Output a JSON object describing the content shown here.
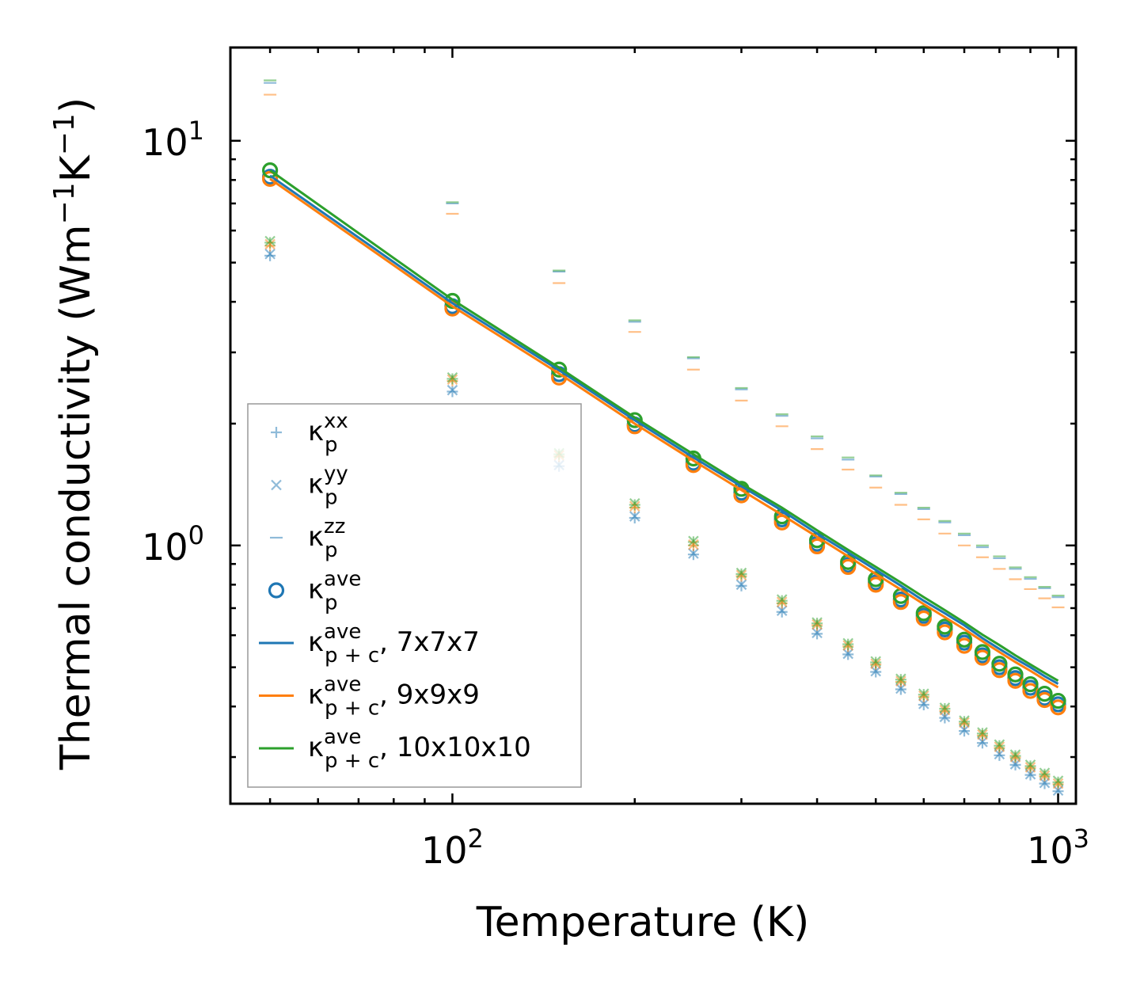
{
  "chart_data": {
    "type": "scatter",
    "title": "",
    "xlabel": "Temperature (K)",
    "ylabel_parts": [
      "Thermal conductivity (Wm",
      "−1",
      "K",
      "−1",
      ")"
    ],
    "xscale": "log",
    "yscale": "log",
    "xlim": [
      43,
      1070
    ],
    "ylim": [
      0.23,
      17
    ],
    "x_major_ticks": [
      {
        "value": 100,
        "base": "10",
        "exp": "2"
      },
      {
        "value": 1000,
        "base": "10",
        "exp": "3"
      }
    ],
    "y_major_ticks": [
      {
        "value": 1,
        "base": "10",
        "exp": "0"
      },
      {
        "value": 10,
        "base": "10",
        "exp": "1"
      }
    ],
    "legend_position": "lower-left",
    "colors": {
      "blue": "#1f77b4",
      "orange": "#ff7f0e",
      "green": "#2ca02c"
    },
    "x": [
      50,
      100,
      150,
      200,
      250,
      300,
      350,
      400,
      450,
      500,
      550,
      600,
      650,
      700,
      750,
      800,
      850,
      900,
      950,
      1000
    ],
    "marker_series": [
      {
        "name": "kappa_p_xx",
        "marker": "+",
        "values": {
          "blue": [
            5.2,
            2.4,
            1.57,
            1.17,
            0.95,
            0.795,
            0.685,
            0.605,
            0.538,
            0.487,
            0.441,
            0.404,
            0.375,
            0.348,
            0.325,
            0.303,
            0.287,
            0.271,
            0.258,
            0.247
          ],
          "orange": [
            5.5,
            2.55,
            1.66,
            1.24,
            1.0,
            0.84,
            0.72,
            0.635,
            0.563,
            0.508,
            0.46,
            0.423,
            0.39,
            0.363,
            0.339,
            0.316,
            0.299,
            0.282,
            0.269,
            0.257
          ],
          "green": [
            5.6,
            2.58,
            1.68,
            1.26,
            1.02,
            0.85,
            0.73,
            0.642,
            0.57,
            0.514,
            0.466,
            0.428,
            0.395,
            0.367,
            0.343,
            0.32,
            0.302,
            0.285,
            0.272,
            0.26
          ]
        }
      },
      {
        "name": "kappa_p_yy",
        "marker": "x",
        "values": {
          "blue": [
            5.25,
            2.42,
            1.58,
            1.18,
            0.955,
            0.8,
            0.69,
            0.608,
            0.54,
            0.489,
            0.443,
            0.406,
            0.377,
            0.35,
            0.327,
            0.305,
            0.288,
            0.272,
            0.259,
            0.248
          ],
          "orange": [
            5.55,
            2.57,
            1.67,
            1.25,
            1.005,
            0.845,
            0.725,
            0.638,
            0.566,
            0.51,
            0.462,
            0.425,
            0.392,
            0.365,
            0.341,
            0.318,
            0.3,
            0.283,
            0.27,
            0.258
          ],
          "green": [
            5.65,
            2.6,
            1.69,
            1.27,
            1.025,
            0.855,
            0.735,
            0.645,
            0.573,
            0.517,
            0.468,
            0.43,
            0.397,
            0.369,
            0.345,
            0.322,
            0.304,
            0.287,
            0.274,
            0.262
          ]
        }
      },
      {
        "name": "kappa_p_zz",
        "marker": "_",
        "values": {
          "blue": [
            13.9,
            7.0,
            4.75,
            3.57,
            2.9,
            2.43,
            2.09,
            1.84,
            1.63,
            1.48,
            1.34,
            1.23,
            1.14,
            1.06,
            0.99,
            0.93,
            0.875,
            0.827,
            0.784,
            0.745
          ],
          "orange": [
            13.0,
            6.6,
            4.45,
            3.37,
            2.72,
            2.28,
            1.97,
            1.73,
            1.54,
            1.39,
            1.26,
            1.16,
            1.07,
            1.0,
            0.935,
            0.875,
            0.825,
            0.78,
            0.74,
            0.703
          ],
          "green": [
            14.1,
            7.05,
            4.78,
            3.6,
            2.92,
            2.45,
            2.11,
            1.86,
            1.65,
            1.49,
            1.35,
            1.24,
            1.15,
            1.07,
            1.0,
            0.94,
            0.883,
            0.835,
            0.79,
            0.752
          ]
        }
      },
      {
        "name": "kappa_p_ave",
        "marker": "o",
        "values": {
          "blue": [
            8.15,
            3.9,
            2.65,
            1.99,
            1.6,
            1.35,
            1.16,
            1.01,
            0.895,
            0.81,
            0.735,
            0.67,
            0.62,
            0.575,
            0.535,
            0.5,
            0.47,
            0.445,
            0.42,
            0.405
          ],
          "orange": [
            8.05,
            3.85,
            2.6,
            1.97,
            1.58,
            1.33,
            1.14,
            0.995,
            0.885,
            0.8,
            0.725,
            0.66,
            0.61,
            0.565,
            0.528,
            0.492,
            0.463,
            0.437,
            0.415,
            0.398
          ],
          "green": [
            8.45,
            4.02,
            2.72,
            2.04,
            1.64,
            1.38,
            1.18,
            1.03,
            0.91,
            0.825,
            0.75,
            0.68,
            0.63,
            0.585,
            0.545,
            0.51,
            0.48,
            0.454,
            0.43,
            0.413
          ]
        }
      }
    ],
    "line_series": [
      {
        "name": "kappa_pc_ave_7x7x7",
        "color": "blue",
        "values": [
          8.2,
          3.97,
          2.71,
          2.04,
          1.65,
          1.4,
          1.22,
          1.07,
          0.96,
          0.87,
          0.795,
          0.73,
          0.68,
          0.635,
          0.59,
          0.555,
          0.525,
          0.5,
          0.475,
          0.455
        ]
      },
      {
        "name": "kappa_pc_ave_9x9x9",
        "color": "orange",
        "values": [
          8.05,
          3.9,
          2.66,
          2.0,
          1.62,
          1.37,
          1.19,
          1.05,
          0.94,
          0.85,
          0.778,
          0.716,
          0.665,
          0.621,
          0.58,
          0.545,
          0.515,
          0.49,
          0.466,
          0.446
        ]
      },
      {
        "name": "kappa_pc_ave_10x10x10",
        "color": "green",
        "values": [
          8.45,
          4.05,
          2.75,
          2.07,
          1.68,
          1.42,
          1.24,
          1.09,
          0.975,
          0.885,
          0.81,
          0.745,
          0.692,
          0.645,
          0.602,
          0.567,
          0.535,
          0.508,
          0.484,
          0.463
        ]
      }
    ],
    "legend": [
      {
        "key": "xx",
        "symbol": "+",
        "label": "κ",
        "sub": "p",
        "sup": "xx",
        "suffix": ""
      },
      {
        "key": "yy",
        "symbol": "x",
        "label": "κ",
        "sub": "p",
        "sup": "yy",
        "suffix": ""
      },
      {
        "key": "zz",
        "symbol": "_",
        "label": "κ",
        "sub": "p",
        "sup": "zz",
        "suffix": ""
      },
      {
        "key": "ave",
        "symbol": "o",
        "label": "κ",
        "sub": "p",
        "sup": "ave",
        "suffix": ""
      },
      {
        "key": "l7",
        "symbol": "line",
        "color": "blue",
        "label": "κ",
        "sub": "p + c",
        "sup": "ave",
        "suffix": ", 7x7x7"
      },
      {
        "key": "l9",
        "symbol": "line",
        "color": "orange",
        "label": "κ",
        "sub": "p + c",
        "sup": "ave",
        "suffix": ", 9x9x9"
      },
      {
        "key": "l10",
        "symbol": "line",
        "color": "green",
        "label": "κ",
        "sub": "p + c",
        "sup": "ave",
        "suffix": ", 10x10x10"
      }
    ]
  }
}
